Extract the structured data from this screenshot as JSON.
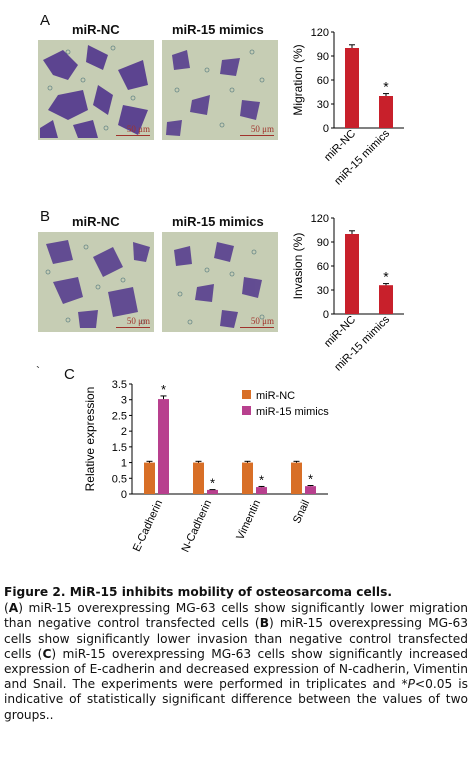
{
  "panel_a": {
    "letter": "A",
    "label_left": "miR-NC",
    "label_right": "miR-15 mimics",
    "scale_left": "50 μm",
    "scale_right": "50 μm"
  },
  "panel_b": {
    "letter": "B",
    "label_left": "miR-NC",
    "label_right": "miR-15 mimics",
    "scale_left": "50 μm",
    "scale_right": "50 μm"
  },
  "panel_c": {
    "letter": "C",
    "stray_mark": "`"
  },
  "colors": {
    "bar_red": "#c8202b",
    "nc_orange": "#d86f27",
    "mimics_magenta": "#b8408e",
    "scale_red": "#a0332c"
  },
  "chart_data": [
    {
      "type": "bar",
      "categories": [
        "miR-NC",
        "miR-15 mimics"
      ],
      "values": [
        100,
        40
      ],
      "errors": [
        4,
        3
      ],
      "significance": [
        "",
        "*"
      ],
      "ylabel": "Migration (%)",
      "ylim": [
        0,
        120
      ],
      "yticks": [
        0,
        30,
        60,
        90,
        120
      ]
    },
    {
      "type": "bar",
      "categories": [
        "miR-NC",
        "miR-15 mimics"
      ],
      "values": [
        100,
        36
      ],
      "errors": [
        4,
        2
      ],
      "significance": [
        "",
        "*"
      ],
      "ylabel": "Invasion (%)",
      "ylim": [
        0,
        120
      ],
      "yticks": [
        0,
        30,
        60,
        90,
        120
      ]
    },
    {
      "type": "bar",
      "categories": [
        "E-Cadherin",
        "N-Cadherin",
        "Vimentin",
        "Snail"
      ],
      "series": [
        {
          "name": "miR-NC",
          "values": [
            1.0,
            1.0,
            1.0,
            1.0
          ],
          "errors": [
            0.04,
            0.04,
            0.04,
            0.04
          ]
        },
        {
          "name": "miR-15 mimics",
          "values": [
            3.02,
            0.13,
            0.22,
            0.25
          ],
          "errors": [
            0.1,
            0.01,
            0.02,
            0.02
          ]
        }
      ],
      "significance": [
        "*",
        "*",
        "*",
        "*"
      ],
      "ylabel": "Relative expression",
      "ylim": [
        0,
        3.5
      ],
      "yticks": [
        0,
        0.5,
        1,
        1.5,
        2,
        2.5,
        3,
        3.5
      ],
      "legend": "top-center"
    }
  ],
  "caption": {
    "title": "Figure 2. MiR-15 inhibits mobility of osteosarcoma cells.",
    "a": "A",
    "t1": ") miR-15 overexpressing MG-63 cells show significantly lower migration than negative control transfected cells (",
    "b": "B",
    "t2": ") miR-15 overexpressing MG-63 cells show significantly lower invasion than negative control transfected cells (",
    "c": "C",
    "t3": ") miR-15 overexpressing MG-63 cells show significantly increased expression of E-cadherin and decreased expression of N-cadherin, Vimentin and Snail. The experiments were performed in triplicates and *",
    "p": "P",
    "t4": "<0.05 is indicative of statistically significant difference between the values of two groups.."
  }
}
